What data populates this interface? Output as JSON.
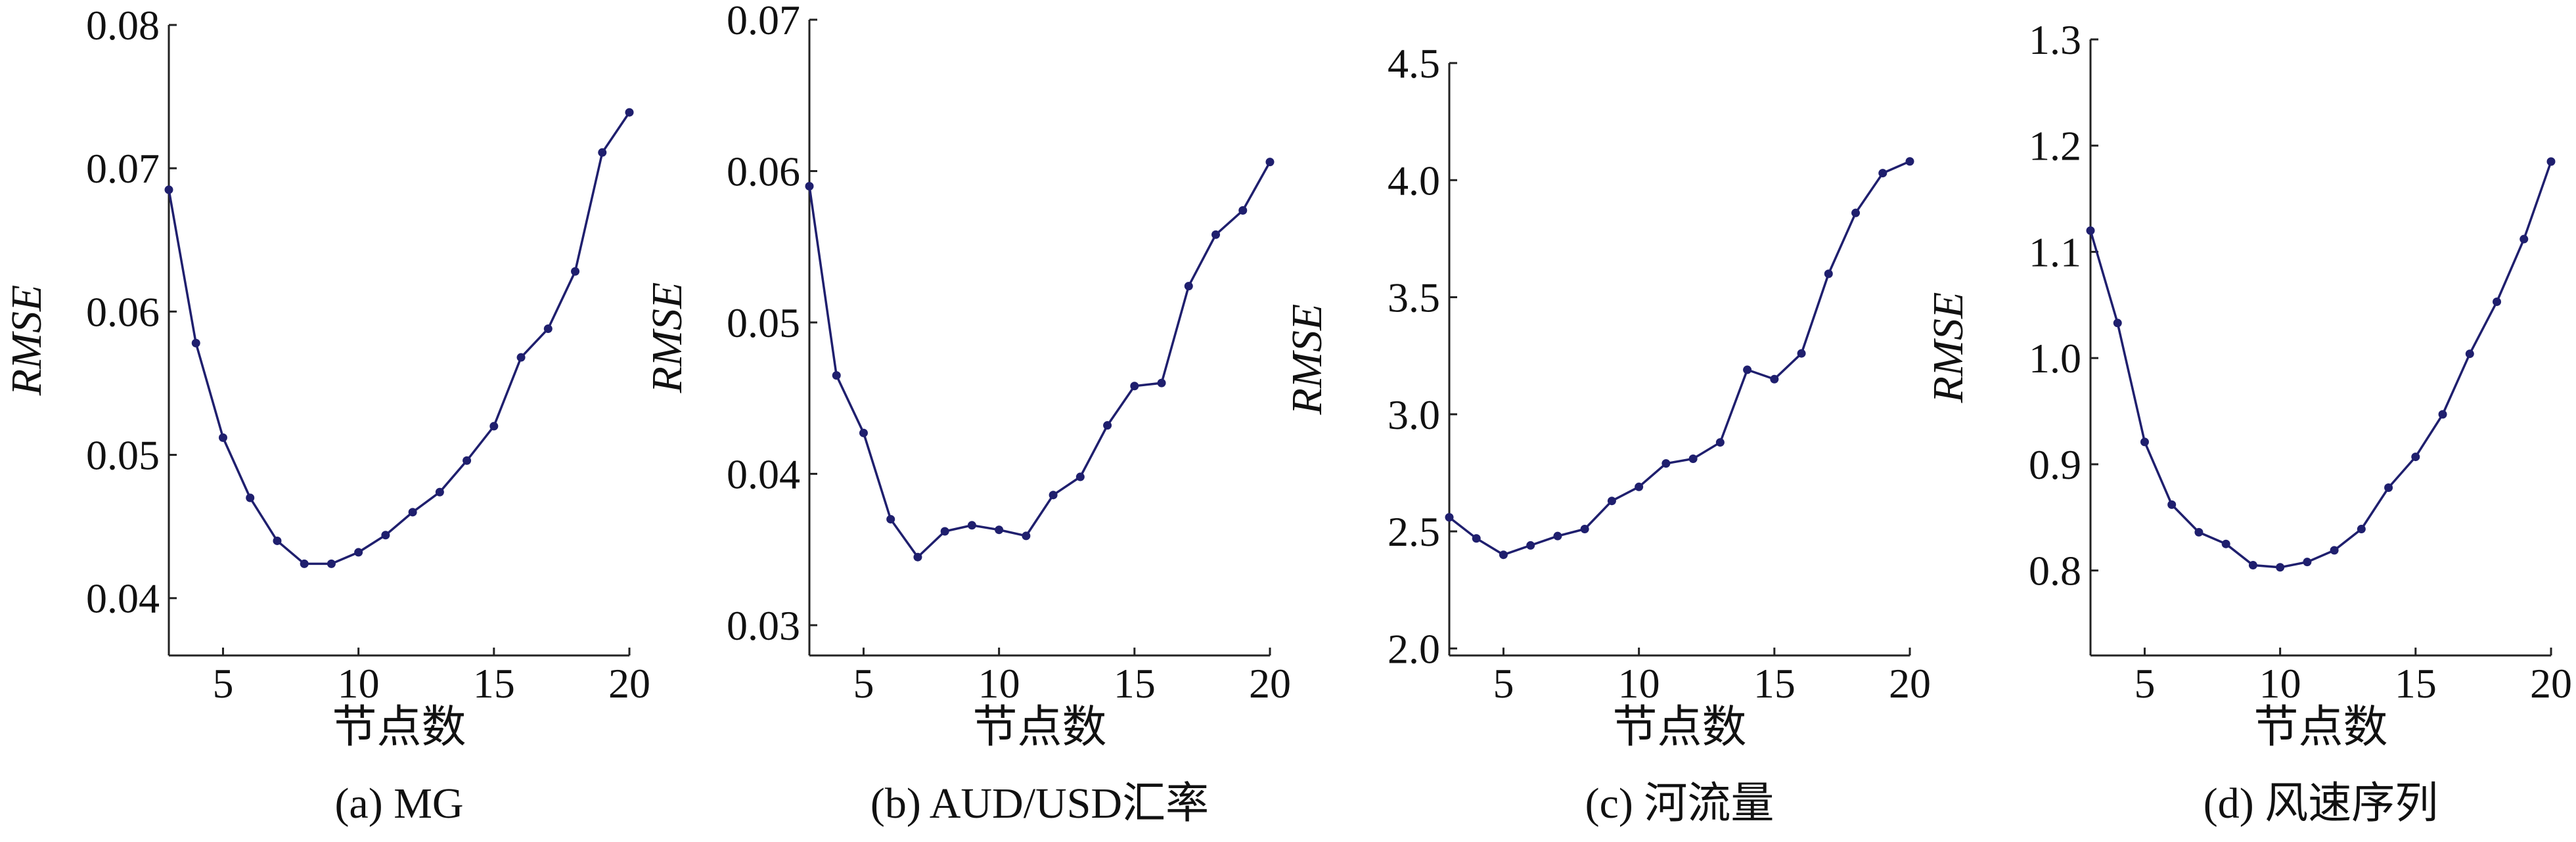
{
  "chart_data": [
    {
      "type": "line",
      "caption": "(a) MG",
      "xlabel": "节点数",
      "ylabel": "RMSE",
      "xlim": [
        3,
        20
      ],
      "ylim": [
        0.036,
        0.082
      ],
      "xticks": [
        5,
        10,
        15,
        20
      ],
      "xtick_labels": [
        "5",
        "10",
        "15",
        "20"
      ],
      "yticks": [
        0.04,
        0.05,
        0.06,
        0.07,
        0.08
      ],
      "ytick_labels": [
        "0.04",
        "0.05",
        "0.06",
        "0.07",
        "0.08"
      ],
      "color": "#1f1f6e",
      "x": [
        3,
        4,
        5,
        6,
        7,
        8,
        9,
        10,
        11,
        12,
        13,
        14,
        15,
        16,
        17,
        18,
        19,
        20
      ],
      "y": [
        0.0685,
        0.0578,
        0.0512,
        0.047,
        0.044,
        0.0424,
        0.0424,
        0.0432,
        0.0444,
        0.046,
        0.0474,
        0.0496,
        0.052,
        0.0568,
        0.0588,
        0.0628,
        0.0711,
        0.0739
      ]
    },
    {
      "type": "line",
      "caption": "(b) AUD/USD汇率",
      "xlabel": "节点数",
      "ylabel": "RMSE",
      "xlim": [
        3,
        20
      ],
      "ylim": [
        0.028,
        0.07
      ],
      "xticks": [
        5,
        10,
        15,
        20
      ],
      "xtick_labels": [
        "5",
        "10",
        "15",
        "20"
      ],
      "yticks": [
        0.03,
        0.04,
        0.05,
        0.06,
        0.07
      ],
      "ytick_labels": [
        "0.03",
        "0.04",
        "0.05",
        "0.06",
        "0.07"
      ],
      "color": "#1f1f6e",
      "x": [
        3,
        4,
        5,
        6,
        7,
        8,
        9,
        10,
        11,
        12,
        13,
        14,
        15,
        16,
        17,
        18,
        19,
        20
      ],
      "y": [
        0.059,
        0.0465,
        0.0427,
        0.037,
        0.0345,
        0.0362,
        0.0366,
        0.0363,
        0.0359,
        0.0386,
        0.0398,
        0.0432,
        0.0458,
        0.046,
        0.0524,
        0.0558,
        0.0574,
        0.0606
      ]
    },
    {
      "type": "line",
      "caption": "(c) 河流量",
      "xlabel": "节点数",
      "ylabel": "RMSE",
      "xlim": [
        3,
        20
      ],
      "ylim": [
        1.97,
        4.5
      ],
      "xticks": [
        5,
        10,
        15,
        20
      ],
      "xtick_labels": [
        "5",
        "10",
        "15",
        "20"
      ],
      "yticks": [
        2.0,
        2.5,
        3.0,
        3.5,
        4.0,
        4.5
      ],
      "ytick_labels": [
        "2.0",
        "2.5",
        "3.0",
        "3.5",
        "4.0",
        "4.5"
      ],
      "color": "#1f1f6e",
      "x": [
        3,
        4,
        5,
        6,
        7,
        8,
        9,
        10,
        11,
        12,
        13,
        14,
        15,
        16,
        17,
        18,
        19,
        20
      ],
      "y": [
        2.56,
        2.47,
        2.4,
        2.44,
        2.48,
        2.51,
        2.63,
        2.69,
        2.79,
        2.81,
        2.88,
        3.19,
        3.15,
        3.26,
        3.6,
        3.86,
        4.03,
        4.08
      ]
    },
    {
      "type": "line",
      "caption": "(d) 风速序列",
      "xlabel": "节点数",
      "ylabel": "RMSE",
      "xlim": [
        3,
        20
      ],
      "ylim": [
        0.72,
        1.3
      ],
      "xticks": [
        5,
        10,
        15,
        20
      ],
      "xtick_labels": [
        "5",
        "10",
        "15",
        "20"
      ],
      "yticks": [
        0.8,
        0.9,
        1.0,
        1.1,
        1.2,
        1.3
      ],
      "ytick_labels": [
        "0.8",
        "0.9",
        "1.0",
        "1.1",
        "1.2",
        "1.3"
      ],
      "color": "#1f1f6e",
      "x": [
        3,
        4,
        5,
        6,
        7,
        8,
        9,
        10,
        11,
        12,
        13,
        14,
        15,
        16,
        17,
        18,
        19,
        20
      ],
      "y": [
        1.12,
        1.033,
        0.921,
        0.862,
        0.836,
        0.825,
        0.805,
        0.803,
        0.808,
        0.819,
        0.839,
        0.878,
        0.907,
        0.947,
        1.004,
        1.053,
        1.112,
        1.185
      ]
    }
  ]
}
